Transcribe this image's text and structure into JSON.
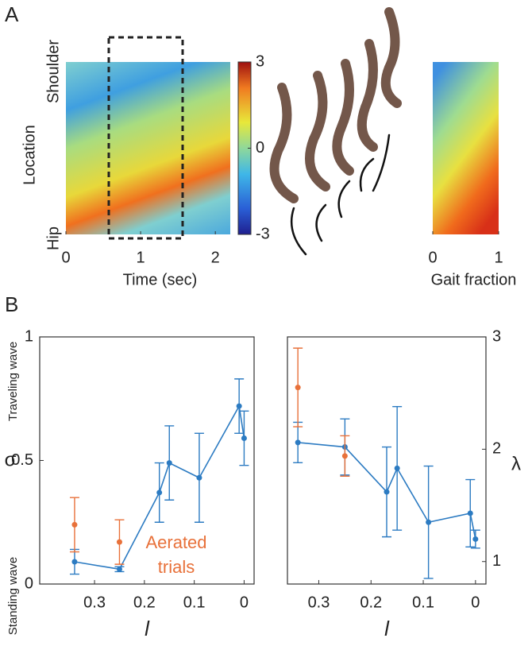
{
  "panels": [
    "A",
    "B"
  ],
  "chart_data": [
    {
      "type": "heatmap",
      "xlabel": "Time (sec)",
      "ylabel": "Location",
      "row_labels": [
        "Shoulder",
        "Hip"
      ],
      "xlim": [
        0,
        2.2
      ],
      "xticks": [
        0,
        1,
        2
      ],
      "colorbar": {
        "lim": [
          -3,
          3
        ],
        "ticks": [
          3,
          0,
          -3
        ]
      }
    },
    {
      "type": "heatmap",
      "xlabel": "Gait fraction",
      "xlim": [
        0,
        1
      ],
      "xticks": [
        0,
        1
      ]
    },
    {
      "type": "errorline",
      "xlabel": "l",
      "ylabel": "σ",
      "top_label": "Traveling wave",
      "bottom_label": "Standing wave",
      "xlim": [
        0.41,
        -0.02
      ],
      "xticks": [
        0.3,
        0.2,
        0.1,
        0
      ],
      "ylim": [
        0,
        1
      ],
      "yticks": [
        0,
        0.5,
        1
      ],
      "series": [
        {
          "color": "#2c7bc2",
          "connected": true,
          "x": [
            0.34,
            0.25,
            0.17,
            0.15,
            0.09,
            0.01,
            0.0
          ],
          "values": [
            0.09,
            0.06,
            0.37,
            0.49,
            0.43,
            0.72,
            0.59
          ],
          "errors": [
            0.05,
            0.01,
            0.12,
            0.15,
            0.18,
            0.11,
            0.11
          ]
        },
        {
          "name": "Aerated trials",
          "color": "#e8713a",
          "connected": false,
          "x": [
            0.34,
            0.25
          ],
          "values": [
            0.24,
            0.17
          ],
          "errors": [
            0.11,
            0.09
          ]
        }
      ]
    },
    {
      "type": "errorline",
      "xlabel": "l",
      "y2label": "λ",
      "xlim": [
        0.36,
        -0.02
      ],
      "xticks": [
        0.3,
        0.2,
        0.1,
        0
      ],
      "y2lim": [
        0.8,
        3
      ],
      "y2ticks": [
        1,
        2,
        3
      ],
      "series": [
        {
          "color": "#2c7bc2",
          "connected": true,
          "axis": "y2",
          "x": [
            0.34,
            0.25,
            0.17,
            0.15,
            0.09,
            0.01,
            0.0
          ],
          "values": [
            2.06,
            2.02,
            1.62,
            1.83,
            1.35,
            1.43,
            1.2
          ],
          "errors": [
            0.18,
            0.25,
            0.4,
            0.55,
            0.5,
            0.3,
            0.08
          ]
        },
        {
          "color": "#e8713a",
          "connected": false,
          "axis": "y2",
          "x": [
            0.34,
            0.25
          ],
          "values": [
            2.55,
            1.94
          ],
          "errors": [
            0.35,
            0.18
          ]
        }
      ]
    }
  ]
}
